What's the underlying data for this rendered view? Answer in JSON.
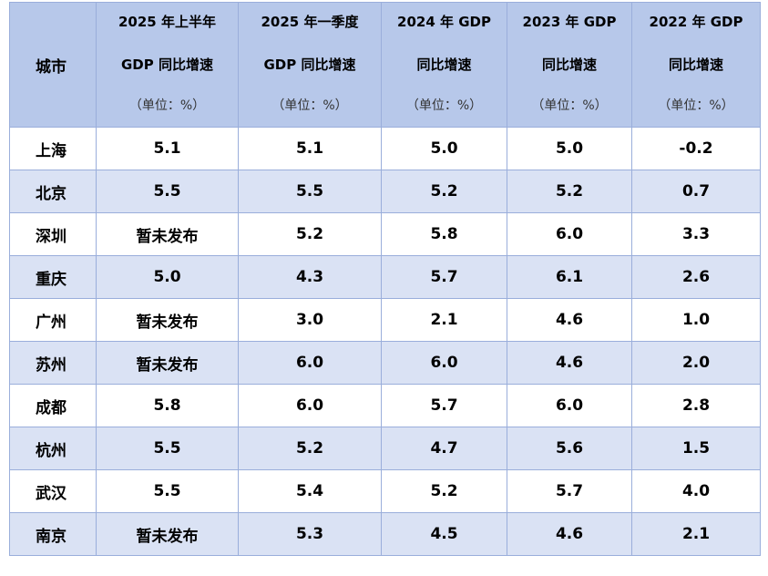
{
  "table": {
    "headers": [
      {
        "lines": [
          "城市"
        ]
      },
      {
        "lines": [
          "2025 年上半年",
          "GDP 同比增速",
          "（单位：%）"
        ]
      },
      {
        "lines": [
          "2025 年一季度",
          "GDP 同比增速",
          "（单位：%）"
        ]
      },
      {
        "lines": [
          "2024 年 GDP",
          "同比增速",
          "（单位：%）"
        ]
      },
      {
        "lines": [
          "2023 年 GDP",
          "同比增速",
          "（单位：%）"
        ]
      },
      {
        "lines": [
          "2022 年 GDP",
          "同比增速",
          "（单位：%）"
        ]
      }
    ],
    "rows": [
      [
        "上海",
        "5.1",
        "5.1",
        "5.0",
        "5.0",
        "-0.2"
      ],
      [
        "北京",
        "5.5",
        "5.5",
        "5.2",
        "5.2",
        "0.7"
      ],
      [
        "深圳",
        "暂未发布",
        "5.2",
        "5.8",
        "6.0",
        "3.3"
      ],
      [
        "重庆",
        "5.0",
        "4.3",
        "5.7",
        "6.1",
        "2.6"
      ],
      [
        "广州",
        "暂未发布",
        "3.0",
        "2.1",
        "4.6",
        "1.0"
      ],
      [
        "苏州",
        "暂未发布",
        "6.0",
        "6.0",
        "4.6",
        "2.0"
      ],
      [
        "成都",
        "5.8",
        "6.0",
        "5.7",
        "6.0",
        "2.8"
      ],
      [
        "杭州",
        "5.5",
        "5.2",
        "4.7",
        "5.6",
        "1.5"
      ],
      [
        "武汉",
        "5.5",
        "5.4",
        "5.2",
        "5.7",
        "4.0"
      ],
      [
        "南京",
        "暂未发布",
        "5.3",
        "4.5",
        "4.6",
        "2.1"
      ]
    ]
  },
  "colors": {
    "header_bg": "#b7c8ea",
    "row_alt_bg": "#dae2f4",
    "row_bg": "#ffffff",
    "border": "#9aaedb"
  }
}
